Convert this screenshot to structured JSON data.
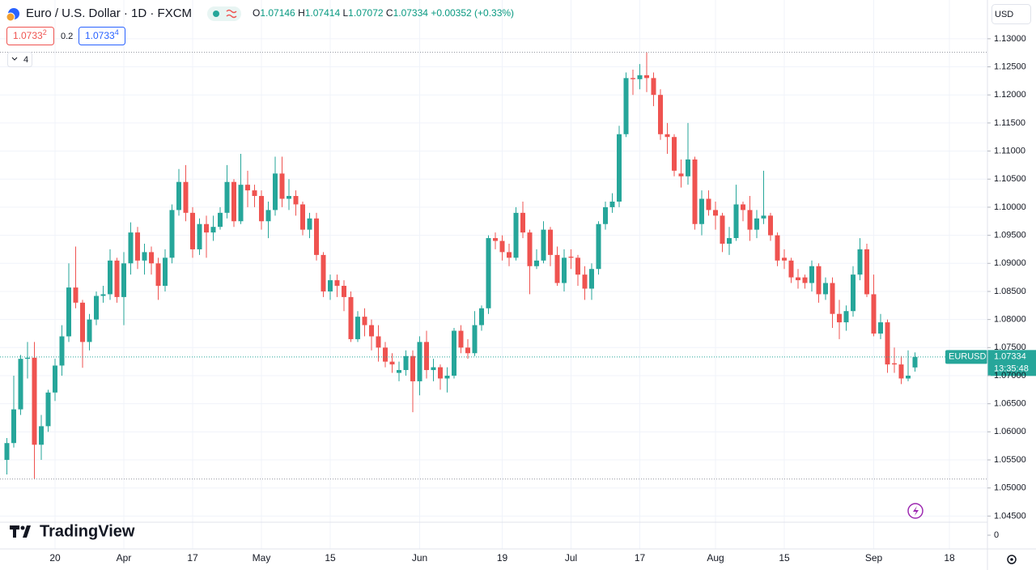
{
  "chart_data": {
    "type": "candlestick",
    "title": "Euro / U.S. Dollar · 1D · FXCM",
    "ohlc_prefixes": [
      "O",
      "H",
      "L",
      "C"
    ],
    "change": "+0.00352 (+0.33%)",
    "bid": {
      "price": "1.0733",
      "pip": "2"
    },
    "spread": 0.2,
    "ask": {
      "price": "1.0733",
      "pip": "4"
    },
    "indicators_count": 4,
    "currency": "USD",
    "symbol": "EURUSD",
    "countdown": "13:35:48",
    "brand": "TradingView",
    "up_color": "#26a69a",
    "down_color": "#ef5350",
    "grid": true,
    "ylim": [
      1.0439,
      1.1369
    ],
    "yticks": [
      {
        "value": 1.13,
        "label": "1.13000"
      },
      {
        "value": 1.125,
        "label": "1.12500"
      },
      {
        "value": 1.12,
        "label": "1.12000"
      },
      {
        "value": 1.115,
        "label": "1.11500"
      },
      {
        "value": 1.11,
        "label": "1.11000"
      },
      {
        "value": 1.105,
        "label": "1.10500"
      },
      {
        "value": 1.1,
        "label": "1.10000"
      },
      {
        "value": 1.095,
        "label": "1.09500"
      },
      {
        "value": 1.09,
        "label": "1.09000"
      },
      {
        "value": 1.085,
        "label": "1.08500"
      },
      {
        "value": 1.08,
        "label": "1.08000"
      },
      {
        "value": 1.075,
        "label": "1.07500"
      },
      {
        "value": 1.07,
        "label": "1.07000"
      },
      {
        "value": 1.065,
        "label": "1.06500"
      },
      {
        "value": 1.06,
        "label": "1.06000"
      },
      {
        "value": 1.055,
        "label": "1.05500"
      },
      {
        "value": 1.05,
        "label": "1.05000"
      },
      {
        "value": 1.045,
        "label": "1.04500"
      }
    ],
    "lower_pane_ticks": [
      0
    ],
    "categories": [
      null,
      null,
      null,
      null,
      null,
      null,
      null,
      "20",
      null,
      null,
      null,
      null,
      null,
      null,
      null,
      null,
      null,
      "Apr",
      null,
      null,
      null,
      null,
      null,
      null,
      null,
      null,
      null,
      "17",
      null,
      null,
      null,
      null,
      null,
      null,
      null,
      null,
      null,
      "May",
      null,
      null,
      null,
      null,
      null,
      null,
      null,
      null,
      null,
      "15",
      null,
      null,
      null,
      null,
      null,
      null,
      null,
      null,
      null,
      null,
      null,
      null,
      "Jun",
      null,
      null,
      null,
      null,
      null,
      null,
      null,
      null,
      null,
      null,
      null,
      "19",
      null,
      null,
      null,
      null,
      null,
      null,
      null,
      null,
      null,
      "Jul",
      null,
      null,
      null,
      null,
      null,
      null,
      null,
      null,
      null,
      "17",
      null,
      null,
      null,
      null,
      null,
      null,
      null,
      null,
      null,
      null,
      "Aug",
      null,
      null,
      null,
      null,
      null,
      null,
      null,
      null,
      null,
      "15",
      null,
      null,
      null,
      null,
      null,
      null,
      null,
      null,
      null,
      null,
      null,
      null,
      "Sep",
      null,
      null,
      null,
      null,
      null,
      null,
      null,
      null,
      null,
      null,
      "18"
    ],
    "open": [
      1.055,
      1.058,
      1.064,
      1.073,
      1.0732,
      1.0577,
      1.061,
      1.067,
      1.0718,
      1.077,
      1.0857,
      1.083,
      1.076,
      1.08,
      1.0842,
      1.0845,
      1.0905,
      1.084,
      1.09,
      1.0955,
      1.0905,
      1.092,
      1.09,
      1.086,
      1.091,
      1.0995,
      1.1045,
      1.099,
      1.0925,
      1.097,
      1.0955,
      1.0965,
      1.099,
      1.1045,
      1.0975,
      1.104,
      1.103,
      1.102,
      1.0975,
      1.0995,
      1.106,
      1.1015,
      1.102,
      1.1005,
      1.096,
      1.098,
      1.0915,
      1.085,
      1.087,
      1.086,
      1.084,
      1.0765,
      1.0805,
      1.079,
      1.077,
      1.075,
      1.0725,
      1.0705,
      1.071,
      1.0735,
      1.069,
      1.076,
      1.071,
      1.0715,
      1.0695,
      1.07,
      1.078,
      1.075,
      1.074,
      1.079,
      1.082,
      1.0945,
      1.094,
      1.092,
      1.091,
      1.099,
      1.0955,
      1.0895,
      1.0905,
      1.096,
      1.0915,
      1.0865,
      1.0912,
      1.091,
      1.088,
      1.0855,
      1.089,
      1.097,
      1.1,
      1.101,
      1.113,
      1.123,
      1.1228,
      1.1235,
      1.123,
      1.12,
      1.113,
      1.1125,
      1.106,
      1.1055,
      1.1085,
      1.097,
      1.1015,
      1.0995,
      1.0985,
      1.0935,
      1.0945,
      1.1005,
      1.0995,
      1.096,
      1.098,
      1.0985,
      1.095,
      1.091,
      1.0905,
      1.0875,
      1.0875,
      1.0865,
      1.0895,
      1.0845,
      1.0865,
      1.081,
      1.0795,
      1.0815,
      1.088,
      1.0925,
      1.0845,
      1.0775,
      1.0795,
      1.0722,
      1.072,
      1.0695,
      1.07146,
      null,
      null,
      null,
      null,
      null
    ],
    "high": [
      1.0589,
      1.07,
      1.0737,
      1.076,
      1.076,
      1.063,
      1.0675,
      1.073,
      1.079,
      1.09,
      1.093,
      1.0835,
      1.081,
      1.085,
      1.086,
      1.0925,
      1.091,
      1.092,
      1.0973,
      1.0965,
      1.0935,
      1.093,
      1.091,
      1.0925,
      1.1005,
      1.1068,
      1.1075,
      1.1,
      1.098,
      1.0985,
      1.0985,
      1.1,
      1.1075,
      1.105,
      1.1095,
      1.1065,
      1.104,
      1.103,
      1.101,
      1.109,
      1.109,
      1.105,
      1.103,
      1.101,
      1.099,
      1.099,
      1.092,
      1.088,
      1.088,
      1.087,
      1.085,
      1.0815,
      1.082,
      1.08,
      1.079,
      1.076,
      1.074,
      1.0725,
      1.0745,
      1.0745,
      1.077,
      1.078,
      1.073,
      1.072,
      1.0715,
      1.0785,
      1.079,
      1.0765,
      1.0815,
      1.0825,
      1.095,
      1.0955,
      1.095,
      1.0935,
      1.1,
      1.101,
      1.096,
      1.0925,
      1.0975,
      1.0965,
      1.093,
      1.0925,
      1.0925,
      1.0915,
      1.0895,
      1.09,
      1.0975,
      1.101,
      1.1025,
      1.1145,
      1.124,
      1.1245,
      1.1255,
      1.1276,
      1.124,
      1.121,
      1.115,
      1.113,
      1.1085,
      1.115,
      1.109,
      1.103,
      1.103,
      1.101,
      1.099,
      1.0965,
      1.104,
      1.101,
      1.102,
      1.0995,
      1.1065,
      1.099,
      1.0955,
      1.0925,
      1.091,
      1.089,
      1.088,
      1.0905,
      1.09,
      1.0875,
      1.0875,
      1.0835,
      1.0825,
      1.0895,
      1.0945,
      1.0935,
      1.088,
      1.081,
      1.08,
      1.075,
      1.0735,
      1.0745,
      1.07414,
      null,
      null,
      null,
      null,
      null
    ],
    "low": [
      1.0524,
      1.0572,
      1.063,
      1.0695,
      1.0516,
      1.055,
      1.06,
      1.0655,
      1.07,
      1.076,
      1.082,
      1.0714,
      1.0745,
      1.079,
      1.083,
      1.0835,
      1.083,
      1.079,
      1.088,
      1.089,
      1.088,
      1.088,
      1.0835,
      1.085,
      1.09,
      1.0985,
      1.0975,
      1.091,
      1.0915,
      1.091,
      1.094,
      1.096,
      1.098,
      1.0965,
      1.097,
      1.1,
      1.1,
      1.096,
      1.0945,
      1.0985,
      1.1,
      1.0995,
      1.0985,
      1.095,
      1.0945,
      1.0905,
      1.084,
      1.0835,
      1.084,
      1.0815,
      1.076,
      1.076,
      1.077,
      1.0745,
      1.0725,
      1.0715,
      1.0705,
      1.069,
      1.07,
      1.0635,
      1.0665,
      1.0695,
      1.069,
      1.0675,
      1.067,
      1.0695,
      1.074,
      1.073,
      1.0735,
      1.078,
      1.081,
      1.0925,
      1.0905,
      1.0895,
      1.0905,
      1.0945,
      1.0845,
      1.089,
      1.09,
      1.0895,
      1.086,
      1.085,
      1.089,
      1.086,
      1.0835,
      1.0835,
      1.088,
      1.096,
      1.099,
      1.1,
      1.1125,
      1.12,
      1.121,
      1.1205,
      1.118,
      1.112,
      1.1095,
      1.1055,
      1.1035,
      1.104,
      1.096,
      1.095,
      1.0985,
      1.096,
      1.092,
      1.0915,
      1.094,
      1.0975,
      1.094,
      1.0945,
      1.097,
      1.094,
      1.0895,
      1.089,
      1.0865,
      1.0855,
      1.0855,
      1.085,
      1.083,
      1.0835,
      1.0785,
      1.0765,
      1.078,
      1.0805,
      1.087,
      1.084,
      1.077,
      1.0765,
      1.0705,
      1.0705,
      1.0685,
      1.069,
      1.07072,
      null,
      null,
      null,
      null,
      null
    ],
    "close": [
      1.058,
      1.064,
      1.073,
      1.0732,
      1.0577,
      1.061,
      1.067,
      1.0718,
      1.077,
      1.0857,
      1.083,
      1.076,
      1.08,
      1.0842,
      1.0845,
      1.0905,
      1.084,
      1.09,
      1.0955,
      1.0905,
      1.092,
      1.09,
      1.086,
      1.091,
      1.0995,
      1.1045,
      1.099,
      1.0925,
      1.097,
      1.0955,
      1.0965,
      1.099,
      1.1045,
      1.0975,
      1.104,
      1.103,
      1.102,
      1.0975,
      1.0995,
      1.106,
      1.1015,
      1.102,
      1.1005,
      1.096,
      1.098,
      1.0915,
      1.085,
      1.087,
      1.086,
      1.084,
      1.0765,
      1.0805,
      1.079,
      1.077,
      1.075,
      1.0725,
      1.072,
      1.071,
      1.0735,
      1.069,
      1.076,
      1.071,
      1.0715,
      1.0695,
      1.07,
      1.078,
      1.075,
      1.074,
      1.079,
      1.082,
      1.0945,
      1.094,
      1.092,
      1.091,
      1.099,
      1.0955,
      1.0895,
      1.0905,
      1.096,
      1.0915,
      1.0865,
      1.091,
      1.091,
      1.088,
      1.0855,
      1.089,
      1.097,
      1.1,
      1.101,
      1.113,
      1.123,
      1.1228,
      1.1235,
      1.123,
      1.12,
      1.113,
      1.1125,
      1.1065,
      1.1055,
      1.1085,
      1.097,
      1.1015,
      1.0995,
      1.0985,
      1.0935,
      1.0945,
      1.1005,
      1.0995,
      1.096,
      1.098,
      1.0985,
      1.095,
      1.0905,
      1.0905,
      1.0875,
      1.087,
      1.0865,
      1.0895,
      1.0845,
      1.0865,
      1.081,
      1.0795,
      1.0815,
      1.088,
      1.0925,
      1.0845,
      1.0775,
      1.0795,
      1.072,
      1.072,
      1.0695,
      1.07,
      1.07334,
      null,
      null,
      null,
      null,
      null
    ]
  }
}
